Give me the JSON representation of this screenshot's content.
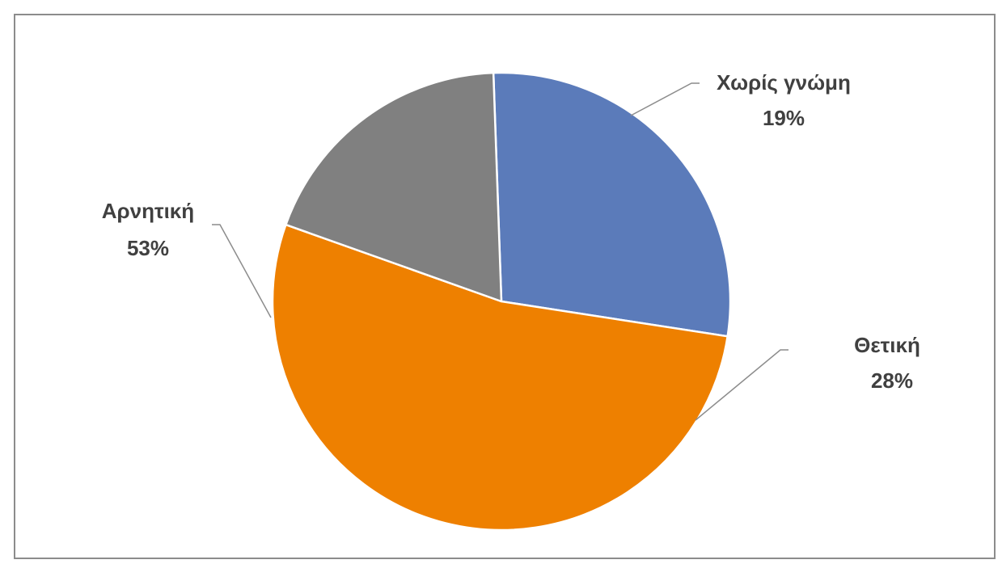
{
  "chart_data": {
    "type": "pie",
    "title": "",
    "slices": [
      {
        "label": "Θετική",
        "value": 28,
        "percent_label": "28%",
        "color": "#5b7bba"
      },
      {
        "label": "Αρνητική",
        "value": 53,
        "percent_label": "53%",
        "color": "#ee8000"
      },
      {
        "label": "Χωρίς γνώμη",
        "value": 19,
        "percent_label": "19%",
        "color": "#808080"
      }
    ],
    "legend": "none",
    "data_labels": "outside-with-leader-lines",
    "colors": {
      "frame": "#8c8c8c",
      "slice_border": "#ffffff",
      "leader_line": "#8c8c8c",
      "label_text": "#404040"
    }
  }
}
